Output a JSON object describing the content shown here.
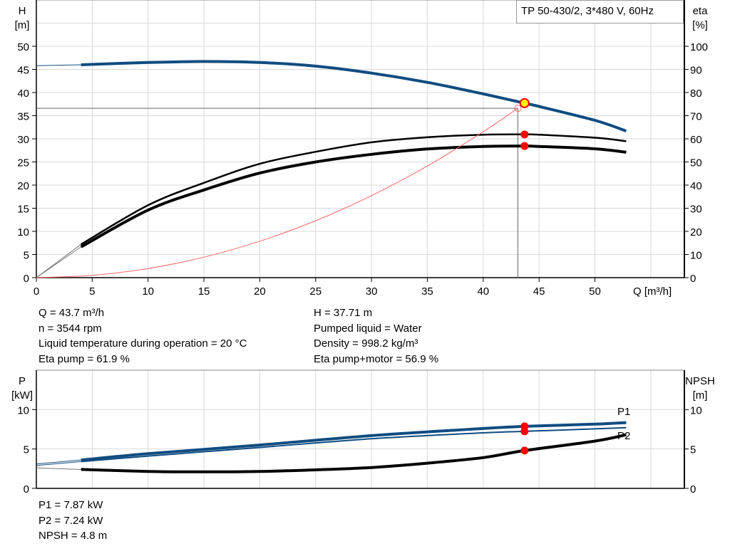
{
  "legend_box": "TP 50-430/2, 3*480 V, 60Hz",
  "info_top": {
    "left": [
      "Q = 43.7 m³/h",
      "n = 3544 rpm",
      "Liquid temperature during operation = 20 °C",
      "Eta pump = 61.9 %"
    ],
    "right": [
      "H = 37.71 m",
      "Pumped liquid = Water",
      "Density = 998.2 kg/m³",
      "Eta pump+motor = 56.9 %"
    ]
  },
  "info_bottom": [
    "P1 = 7.87 kW",
    "P2 = 7.24 kW",
    "NPSH = 4.8 m"
  ],
  "colors": {
    "blue": "#0f4c81",
    "black": "#000000",
    "red": "#ff0000",
    "yellow": "#ffff00",
    "grid": "#d9d9d9"
  },
  "chart_data": [
    {
      "type": "line",
      "xlabel": "Q [m³/h]",
      "ylabel": [
        "H",
        "[m]"
      ],
      "y2label": [
        "eta",
        "[%]"
      ],
      "xlim": [
        0,
        58
      ],
      "ylim": [
        0,
        60
      ],
      "y2lim": [
        0,
        120
      ],
      "xticks": [
        0,
        5,
        10,
        15,
        20,
        25,
        30,
        35,
        40,
        45,
        50
      ],
      "yticks": [
        0,
        5,
        10,
        15,
        20,
        25,
        30,
        35,
        40,
        45,
        50
      ],
      "y2ticks": [
        0,
        10,
        20,
        30,
        40,
        50,
        60,
        70,
        80,
        90,
        100
      ],
      "grid": true,
      "series": [
        {
          "id": "H",
          "axis": "left",
          "color": "#0f4c81",
          "x": [
            4,
            10,
            15,
            20,
            25,
            30,
            35,
            40,
            43.7,
            45,
            50,
            52.8
          ],
          "y": [
            46,
            46.5,
            46.7,
            46.5,
            45.7,
            44.2,
            42.2,
            39.7,
            37.71,
            37,
            34,
            31.7
          ],
          "extension": {
            "x": [
              0,
              4
            ],
            "y": [
              45.8,
              46
            ]
          }
        },
        {
          "id": "eta_pump",
          "axis": "right",
          "color": "#000000",
          "x": [
            4,
            10,
            15,
            20,
            25,
            30,
            35,
            40,
            43.7,
            45,
            50,
            52.8
          ],
          "y": [
            14.4,
            31.3,
            41,
            49.2,
            54.4,
            58.5,
            60.7,
            61.8,
            61.9,
            61.8,
            60.5,
            59
          ],
          "extension": {
            "x": [
              0,
              4
            ],
            "y": [
              0,
              14.4
            ]
          }
        },
        {
          "id": "eta_pump_motor",
          "axis": "right",
          "color": "#000000",
          "x": [
            4,
            10,
            15,
            20,
            25,
            30,
            35,
            40,
            43.7,
            45,
            50,
            52.8
          ],
          "y": [
            13.3,
            29.2,
            37.9,
            45.2,
            50,
            53.3,
            55.6,
            56.7,
            56.9,
            56.7,
            55.7,
            54.2
          ],
          "extension": {
            "x": [
              0,
              4
            ],
            "y": [
              0,
              13.3
            ]
          }
        },
        {
          "id": "system_curve",
          "axis": "left",
          "color": "#ff0000",
          "x": [
            0,
            5,
            10,
            15,
            20,
            25,
            30,
            35,
            40,
            43.1
          ],
          "y": [
            0,
            0.49,
            1.97,
            4.43,
            7.88,
            12.31,
            17.73,
            24.13,
            31.52,
            36.6
          ]
        }
      ],
      "duty_point": {
        "Q": 43.7,
        "H": 37.71,
        "eta_pump": 61.9,
        "eta_pump_motor": 56.9
      },
      "requested_point": {
        "Q": 43.1,
        "H": 36.6
      }
    },
    {
      "type": "line",
      "ylabel": [
        "P",
        "[kW]"
      ],
      "y2label": [
        "NPSH",
        "[m]"
      ],
      "xlim": [
        0,
        58
      ],
      "ylim": [
        0,
        15
      ],
      "y2lim": [
        0,
        15
      ],
      "yticks": [
        0,
        5,
        10
      ],
      "y2ticks": [
        0,
        5,
        10
      ],
      "grid": true,
      "series": [
        {
          "id": "P1",
          "name": "P1",
          "axis": "left",
          "color": "#0f4c81",
          "x": [
            4,
            10,
            20,
            30,
            40,
            43.7,
            50,
            52.8
          ],
          "y": [
            3.6,
            4.4,
            5.5,
            6.7,
            7.6,
            7.87,
            8.15,
            8.35
          ],
          "extension": {
            "x": [
              0,
              4
            ],
            "y": [
              3.1,
              3.6
            ]
          }
        },
        {
          "id": "P2",
          "name": "P2",
          "axis": "left",
          "color": "#0f4c81",
          "x": [
            4,
            10,
            20,
            30,
            40,
            43.7,
            50,
            52.8
          ],
          "y": [
            3.4,
            4.1,
            5.2,
            6.3,
            7.05,
            7.24,
            7.55,
            7.7
          ],
          "extension": {
            "x": [
              0,
              4
            ],
            "y": [
              2.9,
              3.4
            ]
          }
        },
        {
          "id": "NPSH",
          "axis": "right",
          "color": "#000000",
          "x": [
            4,
            10,
            15,
            20,
            25,
            30,
            35,
            40,
            43.7,
            50,
            52.8
          ],
          "y": [
            2.4,
            2.15,
            2.1,
            2.15,
            2.35,
            2.65,
            3.2,
            3.9,
            4.8,
            6.0,
            6.8
          ],
          "extension": {
            "x": [
              0,
              4
            ],
            "y": [
              2.6,
              2.4
            ]
          }
        }
      ],
      "duty_point": {
        "Q": 43.7,
        "P1": 7.87,
        "P2": 7.24,
        "NPSH": 4.8
      }
    }
  ]
}
